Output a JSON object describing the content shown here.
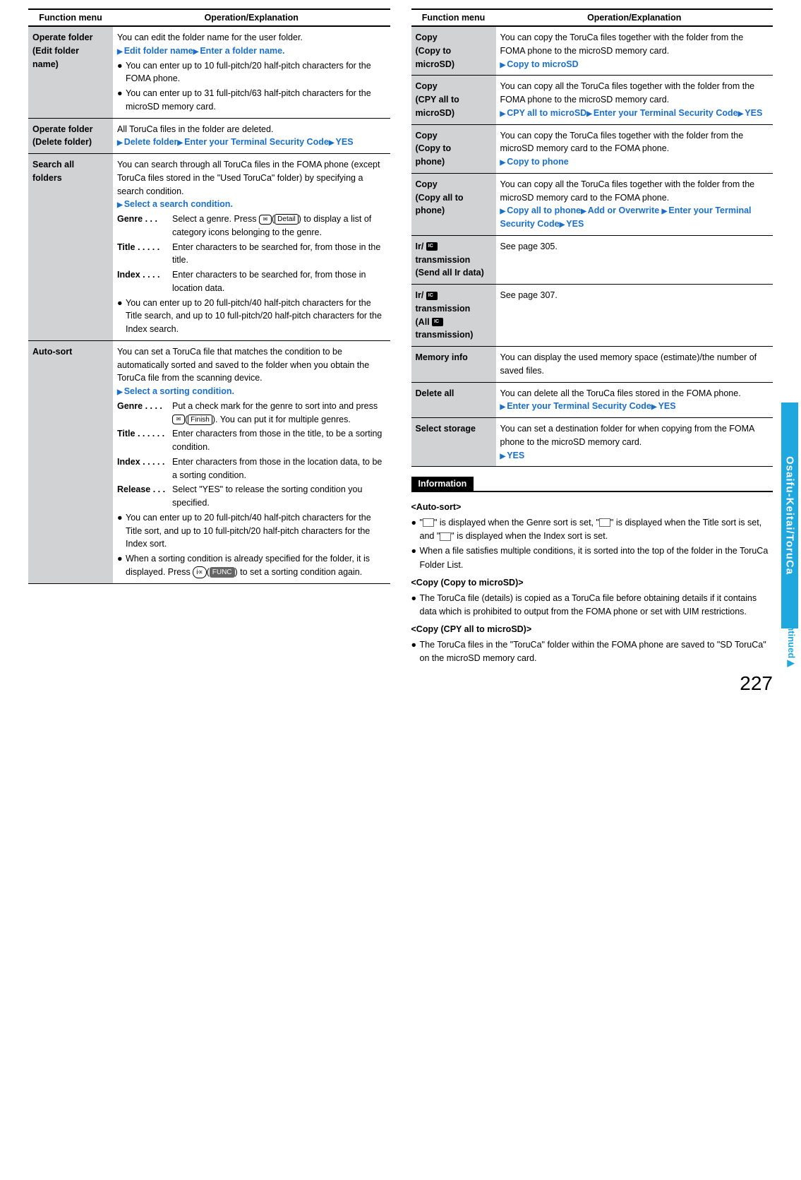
{
  "left_table": {
    "headers": {
      "col1": "Function menu",
      "col2": "Operation/Explanation"
    },
    "rows": [
      {
        "label_lines": [
          "Operate folder",
          "(Edit folder",
          "name)"
        ],
        "body": {
          "intro": "You can edit the folder name for the user folder.",
          "step": "Edit folder name▶Enter a folder name.",
          "bullets": [
            "You can enter up to 10 full-pitch/20 half-pitch characters for the FOMA phone.",
            "You can enter up to 31 full-pitch/63 half-pitch characters for the microSD memory card."
          ]
        }
      },
      {
        "label_lines": [
          "Operate folder",
          "(Delete folder)"
        ],
        "body": {
          "intro": "All ToruCa files in the folder are deleted.",
          "step": "Delete folder▶Enter your Terminal Security Code▶YES"
        }
      },
      {
        "label_lines": [
          "Search all",
          "folders"
        ],
        "body": {
          "intro": "You can search through all ToruCa files in the FOMA phone (except ToruCa files stored in the \"Used ToruCa\" folder) by specifying a search condition.",
          "step": "Select a search condition.",
          "defs": [
            {
              "term": "Genre . . .",
              "desc_pre": "Select a genre.\nPress ",
              "icon_env": true,
              "icon_label": "Detail",
              "desc_post": " to display a list of category icons belonging to the genre."
            },
            {
              "term": "Title . . . . .",
              "desc": "Enter characters to be searched for, from those in the title."
            },
            {
              "term": "Index . . . .",
              "desc": "Enter characters to be searched for, from those in location data."
            }
          ],
          "bullets": [
            "You can enter up to 20 full-pitch/40 half-pitch characters for the Title search, and up to 10 full-pitch/20 half-pitch characters for the Index search."
          ]
        }
      },
      {
        "label_lines": [
          "Auto-sort"
        ],
        "body": {
          "intro": "You can set a ToruCa file that matches the condition to be automatically sorted and saved to the folder when you obtain the ToruCa file from the scanning device.",
          "step": "Select a sorting condition.",
          "defs": [
            {
              "term": "Genre . . . .",
              "desc_pre": "Put a check mark for the genre to sort into and press ",
              "icon_env": true,
              "icon_label": "Finish",
              "desc_post": ". You can put it for multiple genres."
            },
            {
              "term": "Title . . . . . .",
              "desc": "Enter characters from those in the title, to be a sorting condition."
            },
            {
              "term": "Index . . . . .",
              "desc": "Enter characters from those in the location data, to be a sorting condition."
            },
            {
              "term": "Release . . .",
              "desc": "Select \"YES\" to release the sorting condition you specified."
            }
          ],
          "bullets": [
            "You can enter up to 20 full-pitch/40 half-pitch characters for the Title sort, and up to 10 full-pitch/20 half-pitch characters for the Index sort."
          ],
          "bullet_icon": {
            "pre": "When a sorting condition is already specified for the folder, it is displayed. Press ",
            "icon_shape": "pill_i",
            "icon_label": "FUNC",
            "post": " to set a sorting condition again."
          }
        }
      }
    ]
  },
  "right_table": {
    "headers": {
      "col1": "Function menu",
      "col2": "Operation/Explanation"
    },
    "rows": [
      {
        "label_lines": [
          "Copy",
          "(Copy to",
          "microSD)"
        ],
        "body": {
          "intro": "You can copy the ToruCa files together with the folder from the FOMA phone to the microSD memory card.",
          "step": "Copy to microSD"
        }
      },
      {
        "label_lines": [
          "Copy",
          "(CPY all to",
          "microSD)"
        ],
        "body": {
          "intro": "You can copy all the ToruCa files together with the folder from the FOMA phone to the microSD memory card.",
          "step": "CPY all to microSD▶Enter your Terminal Security Code▶YES"
        }
      },
      {
        "label_lines": [
          "Copy",
          "(Copy to",
          "phone)"
        ],
        "body": {
          "intro": "You can copy the ToruCa files together with the folder from the microSD memory card to the FOMA phone.",
          "step": "Copy to phone"
        }
      },
      {
        "label_lines": [
          "Copy",
          "(Copy all to",
          "phone)"
        ],
        "body": {
          "intro": "You can copy all the ToruCa files together with the folder from the microSD memory card to the FOMA phone.",
          "step": "Copy all to phone▶Add or Overwrite ▶Enter your Terminal Security Code▶YES"
        }
      },
      {
        "label_lines": [
          "Ir/",
          "transmission",
          "(Send all Ir data)"
        ],
        "chip_after_first": true,
        "body": {
          "plain": "See page 305."
        }
      },
      {
        "label_lines": [
          "Ir/",
          "transmission",
          "(All ",
          "transmission)"
        ],
        "chip_after_first": true,
        "chip_in_third": true,
        "body": {
          "plain": "See page 307."
        }
      },
      {
        "label_lines": [
          "Memory info"
        ],
        "body": {
          "plain": "You can display the used memory space (estimate)/the number of saved files."
        }
      },
      {
        "label_lines": [
          "Delete all"
        ],
        "body": {
          "intro": "You can delete all the ToruCa files stored in the FOMA phone.",
          "step": "Enter your Terminal Security Code▶YES"
        }
      },
      {
        "label_lines": [
          "Select storage"
        ],
        "body": {
          "intro": "You can set a destination folder for when copying from the FOMA phone to the microSD memory card.",
          "step": "YES"
        }
      }
    ]
  },
  "information": {
    "header": "Information",
    "sections": [
      {
        "title": "<Auto-sort>",
        "bullets": [
          {
            "pre": "\"",
            "icon1": true,
            "mid1": "\" is displayed when the Genre sort is set, \"",
            "icon2": true,
            "mid2": "\" is displayed when the Title sort is set, and \"",
            "icon3": true,
            "post": "\" is displayed when the Index sort is set."
          },
          {
            "text": "When a file satisfies multiple conditions, it is sorted into the top of the folder in the ToruCa Folder List."
          }
        ]
      },
      {
        "title": "<Copy (Copy to microSD)>",
        "bullets": [
          {
            "text": "The ToruCa file (details) is copied as a ToruCa file before obtaining details if it contains data which is prohibited to output from the FOMA phone or set with UIM restrictions."
          }
        ]
      },
      {
        "title": "<Copy (CPY all to microSD)>",
        "bullets": [
          {
            "text": "The ToruCa files in the \"ToruCa\" folder within the FOMA phone are saved to \"SD ToruCa\" on the microSD memory card."
          }
        ]
      }
    ]
  },
  "side_tab": "Osaifu-Keitai/ToruCa",
  "continued": "Continued",
  "page_number": "227"
}
